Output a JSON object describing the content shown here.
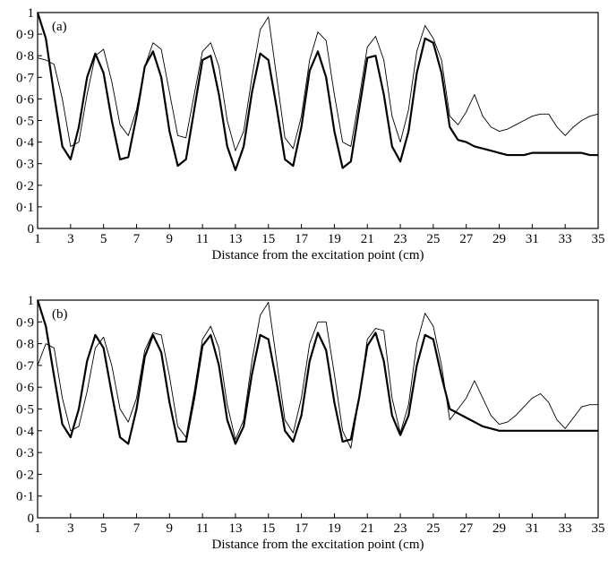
{
  "chart_data": [
    {
      "type": "line",
      "annotation": "(a)",
      "x_label": "Distance from the excitation point (cm)",
      "x": [
        1,
        1.5,
        2,
        2.5,
        3,
        3.5,
        4,
        4.5,
        5,
        5.5,
        6,
        6.5,
        7,
        7.5,
        8,
        8.5,
        9,
        9.5,
        10,
        10.5,
        11,
        11.5,
        12,
        12.5,
        13,
        13.5,
        14,
        14.5,
        15,
        15.5,
        16,
        16.5,
        17,
        17.5,
        18,
        18.5,
        19,
        19.5,
        20,
        20.5,
        21,
        21.5,
        22,
        22.5,
        23,
        23.5,
        24,
        24.5,
        25,
        25.5,
        26,
        26.5,
        27,
        27.5,
        28,
        28.5,
        29,
        29.5,
        30,
        30.5,
        31,
        31.5,
        32,
        32.5,
        33,
        33.5,
        34,
        34.5,
        35
      ],
      "series": [
        {
          "color": "#000000",
          "line_width": 2.2,
          "values": [
            1.0,
            0.88,
            0.62,
            0.38,
            0.32,
            0.47,
            0.7,
            0.81,
            0.72,
            0.5,
            0.32,
            0.33,
            0.52,
            0.75,
            0.82,
            0.7,
            0.45,
            0.29,
            0.32,
            0.55,
            0.78,
            0.8,
            0.62,
            0.38,
            0.27,
            0.38,
            0.63,
            0.81,
            0.78,
            0.56,
            0.32,
            0.29,
            0.47,
            0.73,
            0.82,
            0.7,
            0.45,
            0.28,
            0.31,
            0.55,
            0.79,
            0.8,
            0.62,
            0.38,
            0.31,
            0.45,
            0.72,
            0.88,
            0.86,
            0.72,
            0.47,
            0.41,
            0.4,
            0.38,
            0.37,
            0.36,
            0.35,
            0.34,
            0.34,
            0.34,
            0.35,
            0.35,
            0.35,
            0.35,
            0.35,
            0.35,
            0.35,
            0.34,
            0.34
          ]
        },
        {
          "color": "#000000",
          "line_width": 0.9,
          "values": [
            0.79,
            0.78,
            0.76,
            0.6,
            0.38,
            0.4,
            0.62,
            0.8,
            0.83,
            0.68,
            0.48,
            0.43,
            0.55,
            0.75,
            0.86,
            0.83,
            0.63,
            0.43,
            0.42,
            0.62,
            0.82,
            0.86,
            0.75,
            0.5,
            0.36,
            0.45,
            0.7,
            0.92,
            0.98,
            0.7,
            0.42,
            0.37,
            0.52,
            0.78,
            0.91,
            0.87,
            0.62,
            0.4,
            0.38,
            0.6,
            0.84,
            0.89,
            0.78,
            0.52,
            0.4,
            0.55,
            0.82,
            0.94,
            0.88,
            0.78,
            0.52,
            0.48,
            0.54,
            0.62,
            0.52,
            0.47,
            0.45,
            0.46,
            0.48,
            0.5,
            0.52,
            0.53,
            0.53,
            0.47,
            0.43,
            0.47,
            0.5,
            0.52,
            0.53
          ]
        }
      ],
      "xlim": [
        1,
        35
      ],
      "xticks": [
        1,
        3,
        5,
        7,
        9,
        11,
        13,
        15,
        17,
        19,
        21,
        23,
        25,
        27,
        29,
        31,
        33,
        35
      ],
      "ylim": [
        0,
        1
      ],
      "yticks": [
        0,
        {
          "value": 0.1,
          "label": "0·1"
        },
        {
          "value": 0.2,
          "label": "0·2"
        },
        {
          "value": 0.3,
          "label": "0·3"
        },
        {
          "value": 0.4,
          "label": "0·4"
        },
        {
          "value": 0.5,
          "label": "0·5"
        },
        {
          "value": 0.6,
          "label": "0·6"
        },
        {
          "value": 0.7,
          "label": "0·7"
        },
        {
          "value": 0.8,
          "label": "0·8"
        },
        {
          "value": 0.9,
          "label": "0·9"
        },
        1
      ]
    },
    {
      "type": "line",
      "annotation": "(b)",
      "x_label": "Distance from the excitation point (cm)",
      "x": [
        1,
        1.5,
        2,
        2.5,
        3,
        3.5,
        4,
        4.5,
        5,
        5.5,
        6,
        6.5,
        7,
        7.5,
        8,
        8.5,
        9,
        9.5,
        10,
        10.5,
        11,
        11.5,
        12,
        12.5,
        13,
        13.5,
        14,
        14.5,
        15,
        15.5,
        16,
        16.5,
        17,
        17.5,
        18,
        18.5,
        19,
        19.5,
        20,
        20.5,
        21,
        21.5,
        22,
        22.5,
        23,
        23.5,
        24,
        24.5,
        25,
        25.5,
        26,
        26.5,
        27,
        27.5,
        28,
        28.5,
        29,
        29.5,
        30,
        30.5,
        31,
        31.5,
        32,
        32.5,
        33,
        33.5,
        34,
        34.5,
        35
      ],
      "series": [
        {
          "color": "#000000",
          "line_width": 2.2,
          "values": [
            1.0,
            0.88,
            0.65,
            0.43,
            0.37,
            0.5,
            0.72,
            0.84,
            0.78,
            0.57,
            0.37,
            0.34,
            0.5,
            0.74,
            0.84,
            0.76,
            0.53,
            0.35,
            0.35,
            0.55,
            0.79,
            0.84,
            0.7,
            0.45,
            0.34,
            0.42,
            0.66,
            0.84,
            0.82,
            0.62,
            0.4,
            0.35,
            0.47,
            0.72,
            0.85,
            0.77,
            0.53,
            0.35,
            0.36,
            0.55,
            0.79,
            0.85,
            0.72,
            0.47,
            0.38,
            0.47,
            0.7,
            0.84,
            0.82,
            0.65,
            0.5,
            0.48,
            0.46,
            0.44,
            0.42,
            0.41,
            0.4,
            0.4,
            0.4,
            0.4,
            0.4,
            0.4,
            0.4,
            0.4,
            0.4,
            0.4,
            0.4,
            0.4,
            0.4
          ]
        },
        {
          "color": "#000000",
          "line_width": 0.9,
          "values": [
            0.7,
            0.8,
            0.78,
            0.55,
            0.4,
            0.42,
            0.58,
            0.78,
            0.83,
            0.7,
            0.5,
            0.44,
            0.55,
            0.77,
            0.85,
            0.84,
            0.65,
            0.42,
            0.37,
            0.58,
            0.82,
            0.88,
            0.78,
            0.52,
            0.36,
            0.45,
            0.72,
            0.93,
            0.99,
            0.72,
            0.45,
            0.39,
            0.55,
            0.8,
            0.9,
            0.9,
            0.66,
            0.4,
            0.32,
            0.55,
            0.82,
            0.87,
            0.86,
            0.55,
            0.39,
            0.52,
            0.8,
            0.94,
            0.88,
            0.7,
            0.45,
            0.5,
            0.55,
            0.63,
            0.55,
            0.47,
            0.43,
            0.44,
            0.47,
            0.51,
            0.55,
            0.57,
            0.53,
            0.45,
            0.41,
            0.46,
            0.51,
            0.52,
            0.52
          ]
        }
      ],
      "xlim": [
        1,
        35
      ],
      "xticks": [
        1,
        3,
        5,
        7,
        9,
        11,
        13,
        15,
        17,
        19,
        21,
        23,
        25,
        27,
        29,
        31,
        33,
        35
      ],
      "ylim": [
        0,
        1
      ],
      "yticks": [
        0,
        {
          "value": 0.1,
          "label": "0·1"
        },
        {
          "value": 0.2,
          "label": "0·2"
        },
        {
          "value": 0.3,
          "label": "0·3"
        },
        {
          "value": 0.4,
          "label": "0·4"
        },
        {
          "value": 0.5,
          "label": "0·5"
        },
        {
          "value": 0.6,
          "label": "0·6"
        },
        {
          "value": 0.7,
          "label": "0·7"
        },
        {
          "value": 0.8,
          "label": "0·8"
        },
        {
          "value": 0.9,
          "label": "0·9"
        },
        1
      ]
    }
  ]
}
